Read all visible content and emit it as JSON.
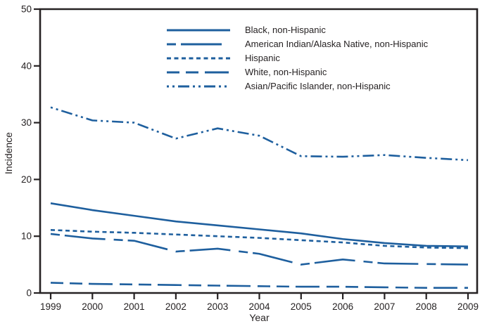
{
  "colors": {
    "line_blue": "#1e5f9e",
    "text": "#262223",
    "axis": "#262223",
    "background": "#ffffff"
  },
  "chart_data": {
    "type": "line",
    "title": "",
    "xlabel": "Year",
    "ylabel": "Incidence",
    "x": [
      1999,
      2000,
      2001,
      2002,
      2003,
      2004,
      2005,
      2006,
      2007,
      2008,
      2009
    ],
    "xlim": [
      1999,
      2009
    ],
    "ylim": [
      0,
      50
    ],
    "yticks": [
      0,
      10,
      20,
      30,
      40,
      50
    ],
    "grid": false,
    "legend_position": "inside upper center, no border",
    "series": [
      {
        "name": "Black, non-Hispanic",
        "dash_style": "solid",
        "values": [
          15.8,
          14.6,
          13.6,
          12.6,
          11.9,
          11.2,
          10.5,
          9.5,
          8.8,
          8.3,
          8.2
        ]
      },
      {
        "name": "American Indian/Alaska Native, non-Hispanic",
        "dash_style": "dash-solid",
        "values": [
          10.4,
          9.6,
          9.2,
          7.3,
          7.8,
          6.9,
          5.0,
          5.9,
          5.2,
          5.1,
          5.0
        ]
      },
      {
        "name": "Hispanic",
        "dash_style": "shortdash",
        "values": [
          11.1,
          10.8,
          10.6,
          10.3,
          10.0,
          9.7,
          9.3,
          8.9,
          8.3,
          8.0,
          7.9
        ]
      },
      {
        "name": "White, non-Hispanic",
        "dash_style": "longdash",
        "values": [
          1.8,
          1.6,
          1.5,
          1.4,
          1.3,
          1.2,
          1.1,
          1.1,
          1.0,
          0.9,
          0.9
        ]
      },
      {
        "name": "Asian/Pacific Islander, non-Hispanic",
        "dash_style": "dashdotdot",
        "values": [
          32.7,
          30.4,
          30.0,
          27.2,
          29.0,
          27.7,
          24.1,
          24.0,
          24.3,
          23.8,
          23.4
        ]
      }
    ]
  }
}
